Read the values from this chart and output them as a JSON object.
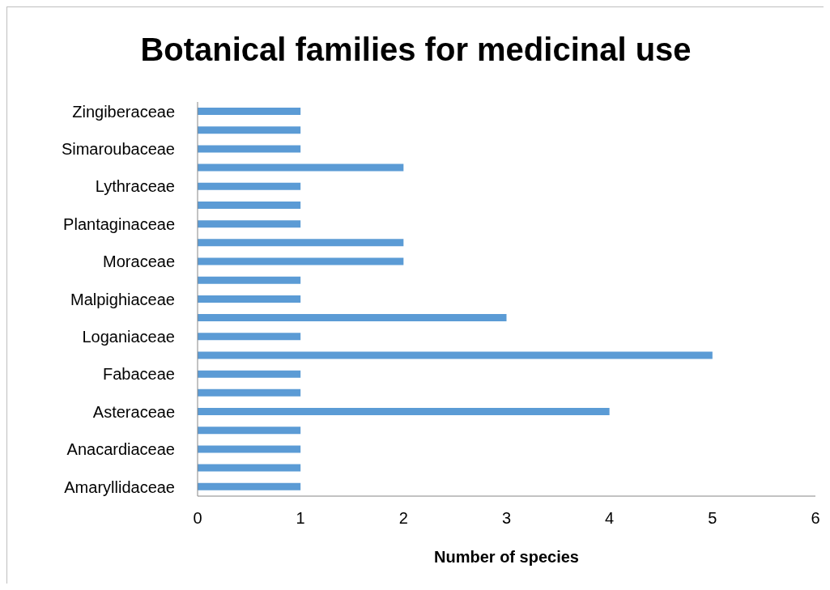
{
  "chart_data": {
    "type": "bar",
    "orientation": "horizontal",
    "title": "Botanical families for medicinal use",
    "xlabel": "Number of species",
    "categories": [
      "Zingiberaceae",
      null,
      "Simaroubaceae",
      null,
      "Lythraceae",
      null,
      "Plantaginaceae",
      null,
      "Moraceae",
      null,
      "Malpighiaceae",
      null,
      "Loganiaceae",
      null,
      "Fabaceae",
      null,
      "Asteraceae",
      null,
      "Anacardiaceae",
      null,
      "Amaryllidaceae"
    ],
    "values": [
      1,
      1,
      1,
      2,
      1,
      1,
      1,
      2,
      2,
      1,
      1,
      3,
      1,
      5,
      1,
      1,
      4,
      1,
      1,
      1,
      1
    ],
    "color": "#5b9bd5",
    "xlim": [
      0,
      6
    ],
    "xticks": [
      0,
      1,
      2,
      3,
      4,
      5,
      6
    ],
    "grid": false,
    "legend": false
  }
}
